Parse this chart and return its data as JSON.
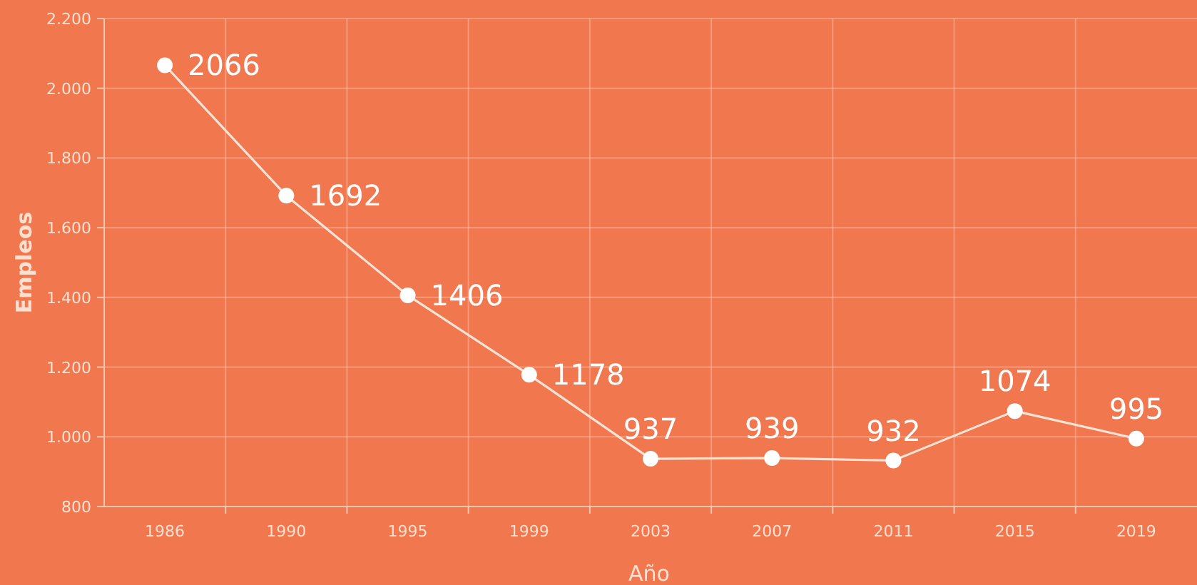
{
  "chart_data": {
    "type": "line",
    "xlabel": "Año",
    "ylabel": "Empleos",
    "categories": [
      "1986",
      "1990",
      "1995",
      "1999",
      "2003",
      "2007",
      "2011",
      "2015",
      "2019"
    ],
    "series": [
      {
        "color": "#fbe3d6",
        "values": [
          2066,
          1692,
          1406,
          1178,
          937,
          939,
          932,
          1074,
          995
        ]
      }
    ],
    "ylim": [
      800,
      2200
    ],
    "yticks": [
      {
        "value": 800,
        "label": "800"
      },
      {
        "value": 1000,
        "label": "1.000"
      },
      {
        "value": 1200,
        "label": "1.200"
      },
      {
        "value": 1400,
        "label": "1.400"
      },
      {
        "value": 1600,
        "label": "1.600"
      },
      {
        "value": 1800,
        "label": "1.800"
      },
      {
        "value": 2000,
        "label": "2.000"
      },
      {
        "value": 2200,
        "label": "2.200"
      }
    ],
    "grid": true,
    "marker": "circle",
    "data_labels": true
  }
}
